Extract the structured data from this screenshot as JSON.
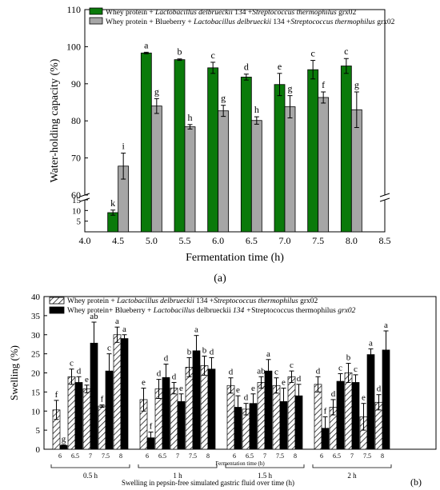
{
  "chart_data": [
    {
      "type": "bar",
      "panel": "(a)",
      "xlabel": "Fermentation time (h)",
      "ylabel": "Water-holding capacity (%)",
      "x": [
        4.5,
        5.0,
        5.5,
        6.0,
        6.5,
        7.0,
        7.5,
        8.0
      ],
      "xlim": [
        4.0,
        8.5
      ],
      "xticks": [
        "4.0",
        "4.5",
        "5.0",
        "5.5",
        "6.0",
        "6.5",
        "7.0",
        "7.5",
        "8.0",
        "8.5"
      ],
      "ylim_lower": [
        0,
        15
      ],
      "ylim_upper": [
        60,
        110
      ],
      "yticks_lower": [
        "5",
        "10",
        "15"
      ],
      "yticks_upper": [
        "60",
        "70",
        "80",
        "90",
        "100",
        "110"
      ],
      "axis_break": true,
      "legend": "top-left",
      "series": [
        {
          "legend_parts": [
            "Whey protein + ",
            "Lactobacillus delbrueckii",
            " 134 +",
            "Streptococcus thermophilus",
            " grx02"
          ],
          "color": "#0a7a0a",
          "values": [
            9.0,
            98.3,
            96.5,
            94.3,
            91.8,
            89.8,
            93.8,
            94.8
          ],
          "errors": [
            1.2,
            0.2,
            0.2,
            1.5,
            0.8,
            3.0,
            2.5,
            2.0
          ],
          "letters": [
            "k",
            "a",
            "b",
            "c",
            "d",
            "e",
            "c",
            "c"
          ]
        },
        {
          "legend_parts": [
            "Whey protein + Blueberry + ",
            "Lactobacillus delbrueckii",
            " 134 +",
            "Streptococcus thermophilus",
            " grx02"
          ],
          "color": "#a6a6a6",
          "values": [
            67.8,
            84.0,
            78.4,
            82.7,
            80.1,
            83.8,
            86.3,
            83.0
          ],
          "errors": [
            3.5,
            2.0,
            0.6,
            1.5,
            1.0,
            3.0,
            1.5,
            4.8
          ],
          "letters": [
            "i",
            "g",
            "h",
            "g",
            "h",
            "g",
            "f",
            "g"
          ]
        }
      ]
    },
    {
      "type": "bar",
      "panel": "(b)",
      "xlabel": "Swelling in pepsin-free simulated gastric fluid over time (h)",
      "inner_xlabel": "Fermentation time (h)",
      "ylabel": "Swelling (%)",
      "ylim": [
        0,
        40
      ],
      "yticks": [
        "0",
        "5",
        "10",
        "15",
        "20",
        "25",
        "30",
        "35",
        "40"
      ],
      "legend": "top-left",
      "groups": [
        "0.5 h",
        "1 h",
        "1.5 h",
        "2 h"
      ],
      "categories": [
        "6",
        "6.5",
        "7",
        "7.5",
        "8"
      ],
      "series": [
        {
          "legend_parts": [
            "Whey protein + ",
            "Lactobacillus delbrueckii",
            " 134 +",
            "Streptococcus thermophilus",
            " grx02"
          ],
          "pattern": "hatched",
          "values": [
            [
              10.3,
              19.0,
              15.8,
              11.3,
              30.0
            ],
            [
              13.0,
              15.8,
              16.0,
              21.5,
              21.9
            ],
            [
              16.7,
              10.5,
              17.5,
              16.7,
              19.0
            ],
            [
              17.0,
              11.0,
              20.0,
              8.5,
              12.3
            ]
          ],
          "errors": [
            [
              2.5,
              2.0,
              1.0,
              0.3,
              2.0
            ],
            [
              3.0,
              2.5,
              1.5,
              2.5,
              2.5
            ],
            [
              2.0,
              1.5,
              1.5,
              2.0,
              1.5
            ],
            [
              2.0,
              2.0,
              2.5,
              3.5,
              2.0
            ]
          ],
          "letters": [
            [
              "f",
              "c",
              "e",
              "f",
              "a"
            ],
            [
              "e",
              "d",
              "d",
              "b",
              "b"
            ],
            [
              "d",
              "d",
              "ab",
              "c",
              "c"
            ],
            [
              "d",
              "d",
              "b",
              "e",
              "d"
            ]
          ]
        },
        {
          "legend_parts": [
            "Whey protein+ Blueberry + ",
            "Lactobacillus",
            "  delbrueckii",
            " 134 +",
            "Streptococcus thermophilus",
            " grx02"
          ],
          "pattern": "solid",
          "values": [
            [
              1.0,
              17.5,
              27.8,
              20.5,
              29.0
            ],
            [
              3.0,
              18.8,
              12.5,
              25.8,
              21.0
            ],
            [
              11.0,
              12.0,
              20.5,
              12.5,
              14.0
            ],
            [
              5.5,
              17.8,
              17.5,
              24.8,
              26.0
            ]
          ],
          "errors": [
            [
              0.2,
              1.5,
              5.5,
              4.5,
              1.0
            ],
            [
              1.5,
              3.5,
              2.0,
              4.0,
              3.0
            ],
            [
              3.0,
              2.5,
              3.0,
              3.5,
              3.0
            ],
            [
              3.0,
              2.0,
              2.0,
              1.5,
              5.0
            ]
          ],
          "letters": [
            [
              "g",
              "d",
              "ab",
              "c",
              "a"
            ],
            [
              "f",
              "d",
              "e",
              "a",
              "d"
            ],
            [
              "e",
              "e",
              "a",
              "e",
              "d"
            ],
            [
              "f",
              "c",
              "c",
              "a",
              "a"
            ]
          ]
        }
      ]
    }
  ]
}
